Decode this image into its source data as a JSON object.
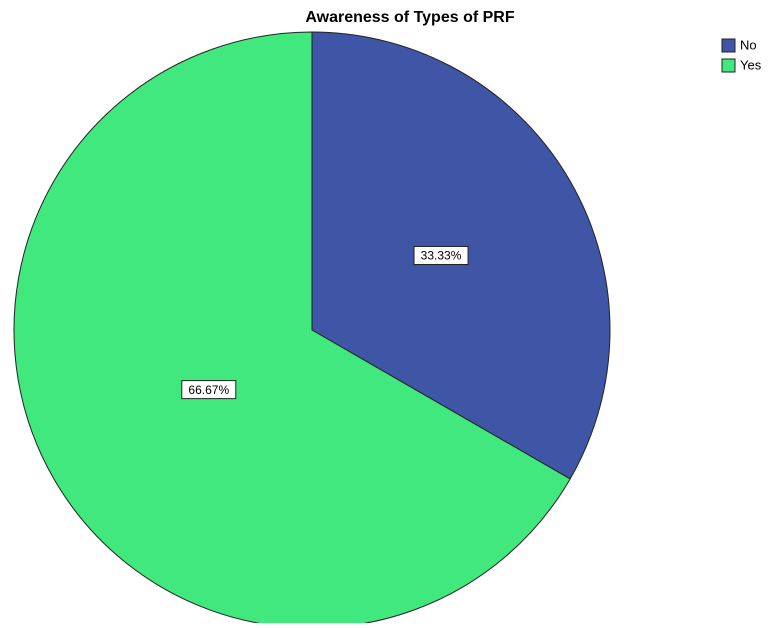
{
  "chart_data": {
    "type": "pie",
    "title": "Awareness of Types of PRF",
    "categories": [
      "No",
      "Yes"
    ],
    "values": [
      33.33,
      66.67
    ],
    "value_labels": [
      "33.33%",
      "66.67%"
    ],
    "colors": [
      "#3f56a6",
      "#40e87e"
    ],
    "legend": "top-right"
  }
}
